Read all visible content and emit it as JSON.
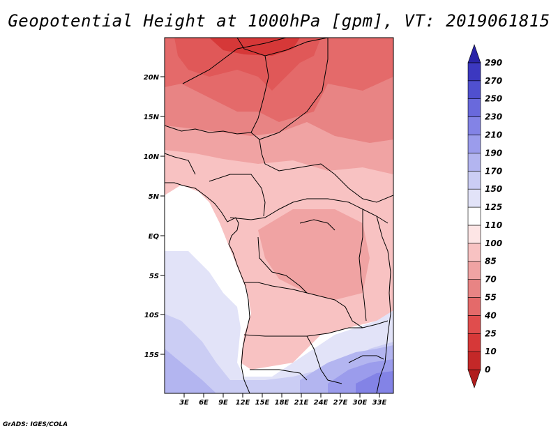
{
  "title": "Geopotential Height at 1000hPa [gpm], VT: 2019061815",
  "credit": "GrADS: IGES/COLA",
  "map": {
    "region": "Central Africa",
    "lat_labels": [
      "20N",
      "15N",
      "10N",
      "5N",
      "EQ",
      "5S",
      "10S",
      "15S"
    ],
    "lon_labels": [
      "3E",
      "6E",
      "9E",
      "12E",
      "15E",
      "18E",
      "21E",
      "24E",
      "27E",
      "30E",
      "33E"
    ]
  },
  "colorbar": {
    "levels": [
      "0",
      "10",
      "25",
      "40",
      "55",
      "70",
      "85",
      "100",
      "110",
      "125",
      "150",
      "170",
      "190",
      "210",
      "230",
      "250",
      "270",
      "290"
    ],
    "colors": [
      "#b01d1d",
      "#c42828",
      "#d63838",
      "#e04d4d",
      "#e46a6a",
      "#e88484",
      "#f0a3a3",
      "#f8c2c2",
      "#fde5e5",
      "#ffffff",
      "#e2e3f8",
      "#cbcdf4",
      "#b3b5f0",
      "#9b9cec",
      "#8383e6",
      "#6969dc",
      "#5050cf",
      "#3c38c0",
      "#2a24a8"
    ]
  }
}
